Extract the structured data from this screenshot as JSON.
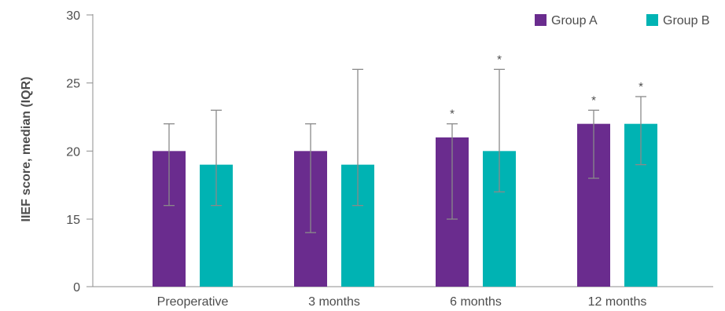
{
  "chart_data": {
    "type": "bar",
    "title": "",
    "xlabel": "",
    "ylabel": "IIEF score, median (IQR)",
    "categories": [
      "Preoperative",
      "3 months",
      "6 months",
      "12 months"
    ],
    "y_ticks": [
      "0",
      "15",
      "20",
      "25",
      "30"
    ],
    "y_scale": "broken axis: 0 then 15–30",
    "ylim": [
      0,
      30
    ],
    "grid": false,
    "legend_position": "top-right",
    "series": [
      {
        "name": "Group A",
        "color": "#6a2c8e",
        "values": [
          20,
          20,
          21,
          22
        ],
        "iqr_low": [
          16,
          12,
          15,
          18
        ],
        "iqr_high": [
          22,
          22,
          22,
          23
        ],
        "significant": [
          false,
          false,
          true,
          true
        ]
      },
      {
        "name": "Group B",
        "color": "#00b3b3",
        "values": [
          19,
          19,
          20,
          22
        ],
        "iqr_low": [
          16,
          16,
          17,
          19
        ],
        "iqr_high": [
          23,
          26,
          26,
          24
        ],
        "significant": [
          false,
          false,
          true,
          true
        ]
      }
    ],
    "significance_marker": "*"
  }
}
